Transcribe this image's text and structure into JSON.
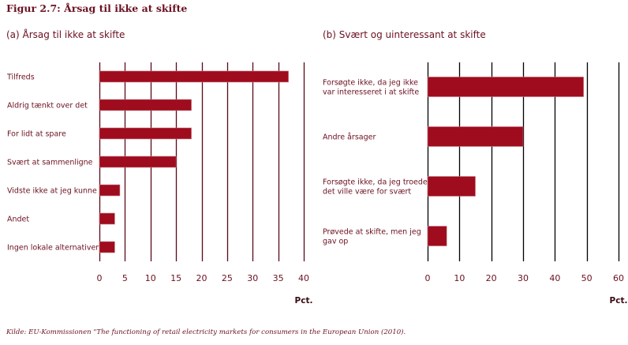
{
  "figure": {
    "title": "Figur 2.7: Årsag til ikke at skifte",
    "source": "Kilde: EU-Kommissionen \"The functioning of retail electricity markets for consumers in the European Union (2010)."
  },
  "colors": {
    "bar": "#9e0c1e",
    "text": "#6b1020",
    "grid_a": "#5c0a16",
    "grid_b": "#000000"
  },
  "chart_data": [
    {
      "type": "bar",
      "orientation": "horizontal",
      "title": "(a) Årsag til ikke at skifte",
      "categories": [
        "Tilfreds",
        "Aldrig tænkt over det",
        "For lidt at spare",
        "Svært at sammenligne",
        "Vidste ikke at jeg kunne",
        "Andet",
        "Ingen lokale alternativer"
      ],
      "values": [
        37,
        18,
        18,
        15,
        4,
        3,
        3
      ],
      "xlabel": "Pct.",
      "ylabel": "",
      "xlim": [
        0,
        40
      ],
      "xticks": [
        "0",
        "5",
        "10",
        "15",
        "20",
        "25",
        "30",
        "35",
        "40"
      ],
      "grid": "vertical"
    },
    {
      "type": "bar",
      "orientation": "horizontal",
      "title": "(b) Svært og uinteressant at skifte",
      "categories": [
        [
          "Forsøgte ikke, da jeg ikke",
          "var interesseret i at skifte"
        ],
        [
          "Andre årsager"
        ],
        [
          "Forsøgte ikke, da jeg troede",
          "det ville være for svært"
        ],
        [
          "Prøvede at skifte, men jeg",
          "gav op"
        ]
      ],
      "values": [
        49,
        30,
        15,
        6
      ],
      "xlabel": "Pct.",
      "ylabel": "",
      "xlim": [
        0,
        60
      ],
      "xticks": [
        "0",
        "10",
        "20",
        "30",
        "40",
        "50",
        "60"
      ],
      "grid": "vertical"
    }
  ]
}
